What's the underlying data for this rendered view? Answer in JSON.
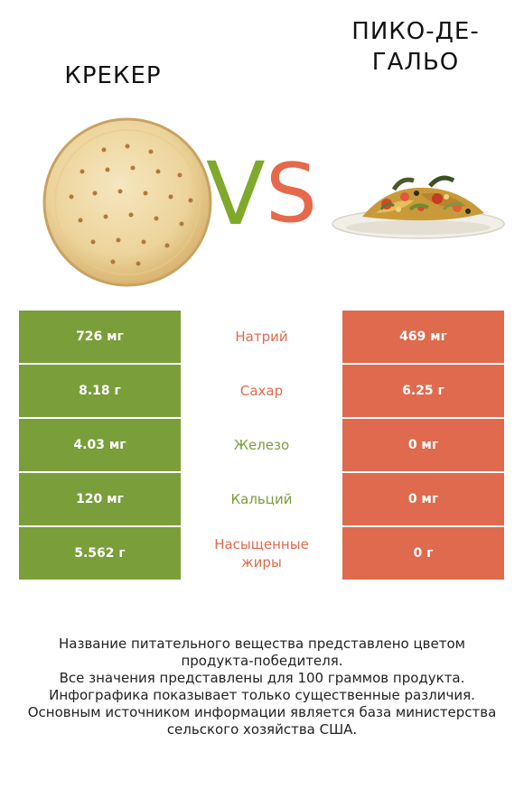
{
  "header": {
    "left_title": "КРЕКЕР",
    "right_title_line1": "ПИКО-ДЕ-",
    "right_title_line2": "ГАЛЬО",
    "vs_v": "V",
    "vs_s": "S"
  },
  "colors": {
    "left": "#7a9e3a",
    "right": "#e06a4e",
    "vs_v": "#7fa92b",
    "vs_s": "#e5694a"
  },
  "rows": [
    {
      "left": "726 мг",
      "name": "Натрий",
      "right": "469 мг",
      "winner": "right"
    },
    {
      "left": "8.18 г",
      "name": "Сахар",
      "right": "6.25 г",
      "winner": "right"
    },
    {
      "left": "4.03 мг",
      "name": "Железо",
      "right": "0 мг",
      "winner": "left"
    },
    {
      "left": "120 мг",
      "name": "Кальций",
      "right": "0 мг",
      "winner": "left"
    },
    {
      "left": "5.562 г",
      "name_line1": "Насыщенные",
      "name_line2": "жиры",
      "right": "0 г",
      "winner": "right"
    }
  ],
  "footnote": {
    "line1": "Название питательного вещества представлено цветом",
    "line2": "продукта-победителя.",
    "line3": "Все значения представлены для 100 граммов продукта.",
    "line4": "Инфографика показывает только существенные различия.",
    "line5": "Основным источником информации является база министерства",
    "line6": "сельского хозяйства США."
  }
}
